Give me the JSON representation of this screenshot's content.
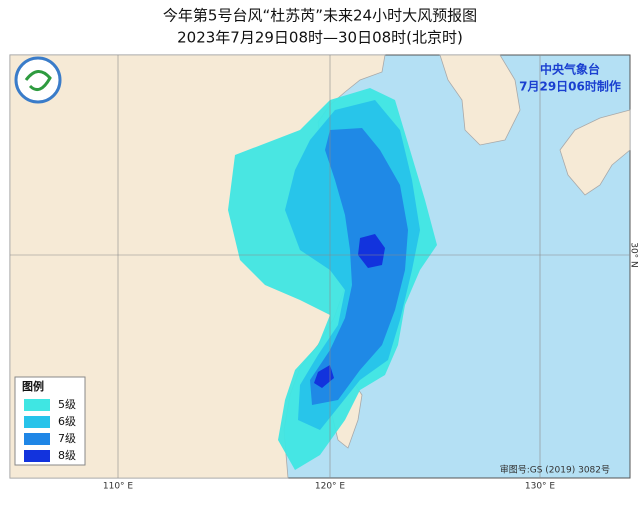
{
  "header": {
    "title": "今年第5号台风“杜苏芮”未来24小时大风预报图",
    "subtitle": "2023年7月29日08时—30日08时(北京时)"
  },
  "agency": {
    "name": "中央气象台",
    "issued": "7月29日06时制作"
  },
  "legend": {
    "title": "图例",
    "items": [
      {
        "label": "5级",
        "color": "#3fe6e3"
      },
      {
        "label": "6级",
        "color": "#27c3ea"
      },
      {
        "label": "7级",
        "color": "#1f86e6"
      },
      {
        "label": "8级",
        "color": "#1233dd"
      }
    ]
  },
  "grid": {
    "longitude_labels": [
      "110° E",
      "120° E",
      "130° E"
    ],
    "latitude_labels": [
      "30° N"
    ]
  },
  "approval": "审图号:GS (2019) 3082号"
}
